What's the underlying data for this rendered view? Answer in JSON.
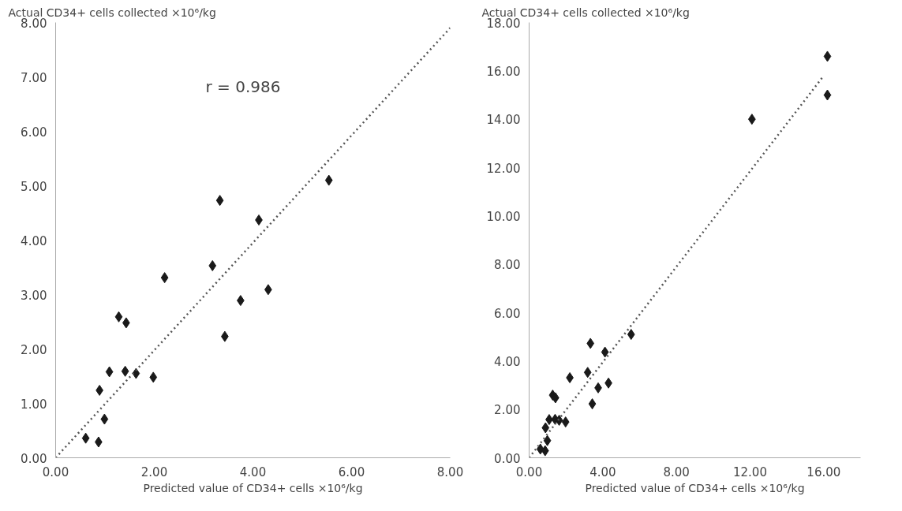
{
  "chart_data": [
    {
      "type": "scatter",
      "title": "Actual CD34+ cells collected ×10⁶/kg",
      "xlabel": "Predicted value of CD34+ cells ×10⁶/kg",
      "annotations": [
        "r = 0.986"
      ],
      "xlim": [
        0,
        8
      ],
      "ylim": [
        0,
        8
      ],
      "xticks": [
        {
          "value": 0,
          "label": "0.00"
        },
        {
          "value": 2,
          "label": "2.00"
        },
        {
          "value": 4,
          "label": "4.00"
        },
        {
          "value": 6,
          "label": "6.00"
        },
        {
          "value": 8,
          "label": "8.00"
        }
      ],
      "yticks": [
        {
          "value": 0,
          "label": "0.00"
        },
        {
          "value": 1,
          "label": "1.00"
        },
        {
          "value": 2,
          "label": "2.00"
        },
        {
          "value": 3,
          "label": "3.00"
        },
        {
          "value": 4,
          "label": "4.00"
        },
        {
          "value": 5,
          "label": "5.00"
        },
        {
          "value": 6,
          "label": "6.00"
        },
        {
          "value": 7,
          "label": "7.00"
        },
        {
          "value": 8,
          "label": "8.00"
        }
      ],
      "grid": false,
      "series": [
        {
          "marker": "diamond",
          "color": "#1a1a1a",
          "x": [
            0.61,
            0.87,
            0.99,
            0.89,
            1.09,
            1.41,
            1.63,
            1.98,
            1.28,
            1.43,
            2.21,
            3.18,
            3.33,
            3.43,
            3.75,
            4.31,
            4.12,
            5.54
          ],
          "values": [
            0.36,
            0.29,
            0.71,
            1.24,
            1.58,
            1.59,
            1.55,
            1.48,
            2.59,
            2.48,
            3.31,
            3.53,
            4.73,
            2.23,
            2.89,
            3.09,
            4.37,
            5.1
          ]
        },
        {
          "type": "line",
          "color": "#555555",
          "line_style": "dotted",
          "x": [
            0,
            8
          ],
          "values": [
            0,
            7.9
          ]
        }
      ]
    },
    {
      "type": "scatter",
      "title": "Actual CD34+ cells collected ×10⁶/kg",
      "xlabel": "Predicted value of CD34+ cells ×10⁶/kg",
      "xlim": [
        0,
        18
      ],
      "ylim": [
        0,
        18
      ],
      "xticks": [
        {
          "value": 0,
          "label": "0.00"
        },
        {
          "value": 4,
          "label": "4.00"
        },
        {
          "value": 8,
          "label": "8.00"
        },
        {
          "value": 12,
          "label": "12.00"
        },
        {
          "value": 16,
          "label": "16.00"
        }
      ],
      "yticks": [
        {
          "value": 0,
          "label": "0.00"
        },
        {
          "value": 2,
          "label": "2.00"
        },
        {
          "value": 4,
          "label": "4.00"
        },
        {
          "value": 6,
          "label": "6.00"
        },
        {
          "value": 8,
          "label": "8.00"
        },
        {
          "value": 10,
          "label": "10.00"
        },
        {
          "value": 12,
          "label": "12.00"
        },
        {
          "value": 14,
          "label": "14.00"
        },
        {
          "value": 16,
          "label": "16.00"
        },
        {
          "value": 18,
          "label": "18.00"
        }
      ],
      "grid": false,
      "series": [
        {
          "marker": "diamond",
          "color": "#1a1a1a",
          "x": [
            0.61,
            0.87,
            0.99,
            0.89,
            1.09,
            1.41,
            1.63,
            1.98,
            1.28,
            1.43,
            2.21,
            3.18,
            3.33,
            3.43,
            3.75,
            4.31,
            4.12,
            5.54,
            12.1,
            16.2,
            16.2
          ],
          "values": [
            0.36,
            0.29,
            0.71,
            1.24,
            1.58,
            1.59,
            1.55,
            1.48,
            2.59,
            2.48,
            3.31,
            3.53,
            4.73,
            2.23,
            2.89,
            3.09,
            4.37,
            5.1,
            14.0,
            16.6,
            15.0
          ]
        },
        {
          "type": "line",
          "color": "#555555",
          "line_style": "dotted",
          "x": [
            0,
            16
          ],
          "values": [
            0,
            15.8
          ]
        }
      ]
    }
  ]
}
